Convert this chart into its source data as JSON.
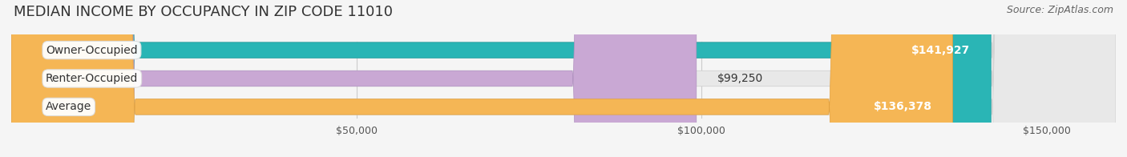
{
  "title": "MEDIAN INCOME BY OCCUPANCY IN ZIP CODE 11010",
  "source": "Source: ZipAtlas.com",
  "categories": [
    "Owner-Occupied",
    "Renter-Occupied",
    "Average"
  ],
  "values": [
    141927,
    99250,
    136378
  ],
  "labels": [
    "$141,927",
    "$99,250",
    "$136,378"
  ],
  "bar_colors": [
    "#2ab5b5",
    "#c9a8d4",
    "#f5b655"
  ],
  "bar_edge_colors": [
    "#1a9a9a",
    "#b090c0",
    "#e0a040"
  ],
  "background_color": "#f5f5f5",
  "bar_bg_color": "#e8e8e8",
  "xlim": [
    0,
    160000
  ],
  "xticks": [
    0,
    50000,
    100000,
    150000
  ],
  "xticklabels": [
    "",
    "$50,000",
    "$100,000",
    "$150,000"
  ],
  "title_fontsize": 13,
  "source_fontsize": 9,
  "label_fontsize": 10,
  "category_fontsize": 10,
  "bar_height": 0.55,
  "figsize": [
    14.06,
    1.96
  ],
  "dpi": 100
}
